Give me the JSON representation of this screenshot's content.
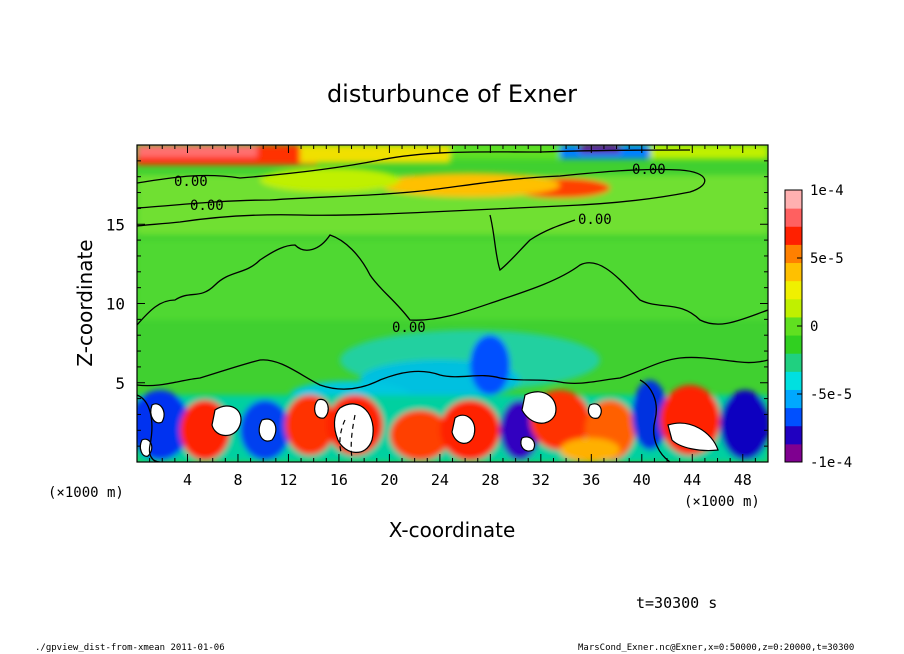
{
  "chart_data": {
    "type": "heatmap",
    "title": "disturbunce of Exner",
    "xlabel": "X-coordinate",
    "ylabel": "Z-coordinate",
    "x_unit": "(×1000 m)",
    "x_unit_right": "(×1000 m)",
    "xlim": [
      0,
      50
    ],
    "ylim": [
      0,
      20
    ],
    "x_ticks": [
      4,
      8,
      12,
      16,
      20,
      24,
      28,
      32,
      36,
      40,
      44,
      48
    ],
    "y_ticks": [
      5,
      10,
      15
    ],
    "colorbar": {
      "range": [
        -0.0001,
        0.0001
      ],
      "tick_labels": [
        "1e-4",
        "5e-5",
        "0",
        "-5e-5",
        "-1e-4"
      ],
      "tick_values": [
        0.0001,
        5e-05,
        0,
        -5e-05,
        -0.0001
      ],
      "colors": [
        "#7f0090",
        "#2000c0",
        "#0050ff",
        "#00a8ff",
        "#00e0e0",
        "#20d080",
        "#30d020",
        "#60e020",
        "#c0f000",
        "#f0f000",
        "#ffc000",
        "#ff8000",
        "#ff2000",
        "#ff6060",
        "#ffb0b0"
      ]
    },
    "contour_labels": [
      "0.00",
      "0.00",
      "0.00",
      "0.00",
      "0.00"
    ],
    "time_label": "t=30300 s",
    "footer_left": "./gpview_dist-from-xmean  2011-01-06",
    "footer_right": "MarsCond_Exner.nc@Exner,x=0:50000,z=0:20000,t=30300"
  }
}
